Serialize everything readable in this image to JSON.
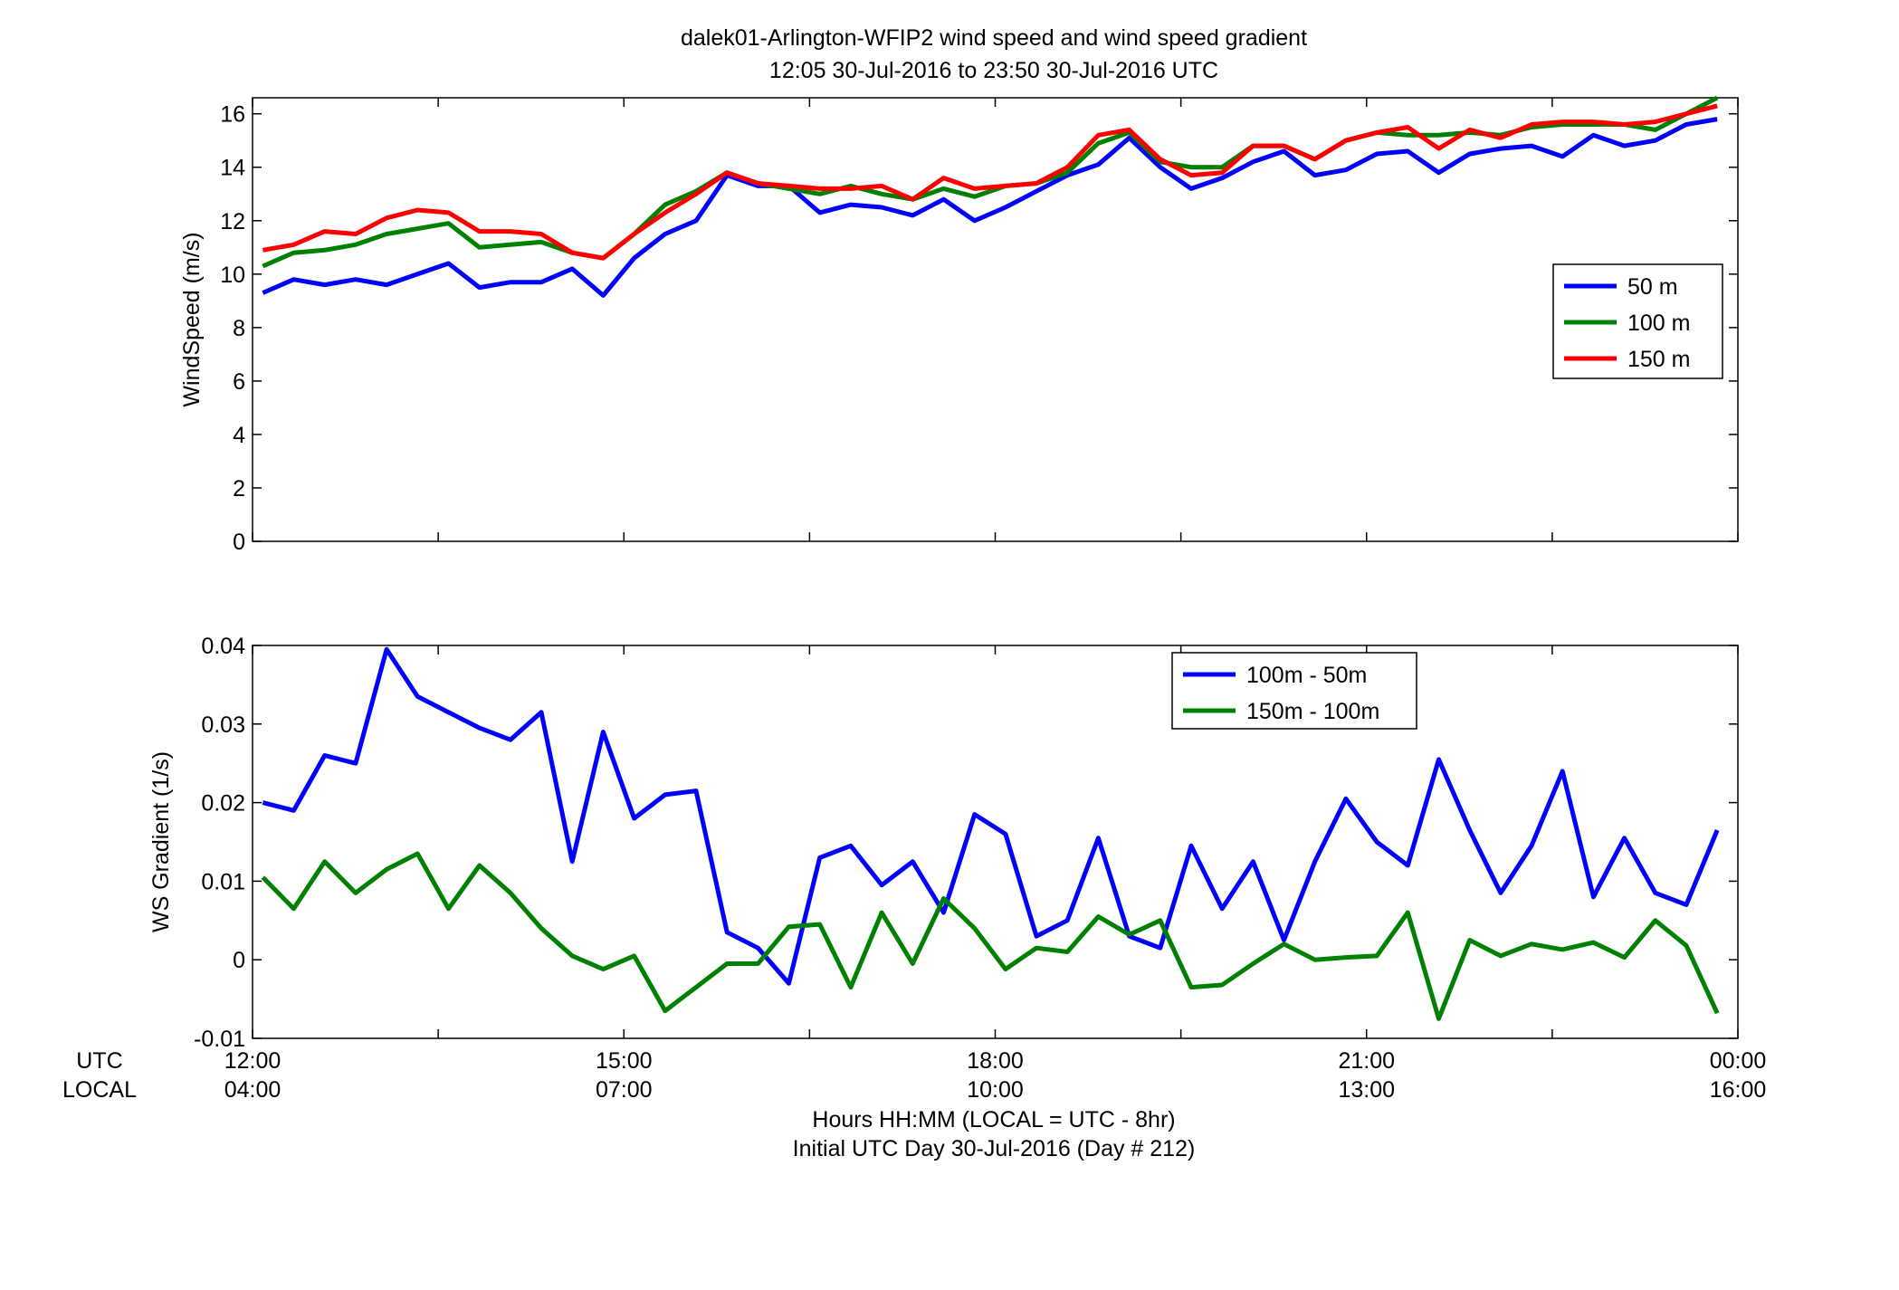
{
  "title_line1": "dalek01-Arlington-WFIP2  wind speed and wind speed gradient",
  "title_line2": "12:05 30-Jul-2016 to 23:50 30-Jul-2016  UTC",
  "utc_row_label": "UTC",
  "local_row_label": "LOCAL",
  "xlabel_line1": "Hours HH:MM  (LOCAL = UTC - 8hr)",
  "xlabel_line2": "Initial UTC Day 30-Jul-2016 (Day # 212)",
  "x_ticks_utc": [
    "12:00",
    "15:00",
    "18:00",
    "21:00",
    "00:00"
  ],
  "x_ticks_local": [
    "04:00",
    "07:00",
    "10:00",
    "13:00",
    "16:00"
  ],
  "chart_data": [
    {
      "type": "line",
      "ylabel": "WindSpeed (m/s)",
      "xlim": [
        12.0,
        24.0
      ],
      "ylim": [
        0,
        16.6
      ],
      "yticks": [
        0,
        2,
        4,
        6,
        8,
        10,
        12,
        14,
        16
      ],
      "legend_position": "right",
      "x_hours_utc": [
        12.083,
        12.333,
        12.583,
        12.833,
        13.083,
        13.333,
        13.583,
        13.833,
        14.083,
        14.333,
        14.583,
        14.833,
        15.083,
        15.333,
        15.583,
        15.833,
        16.083,
        16.333,
        16.583,
        16.833,
        17.083,
        17.333,
        17.583,
        17.833,
        18.083,
        18.333,
        18.583,
        18.833,
        19.083,
        19.333,
        19.583,
        19.833,
        20.083,
        20.333,
        20.583,
        20.833,
        21.083,
        21.333,
        21.583,
        21.833,
        22.083,
        22.333,
        22.583,
        22.833,
        23.083,
        23.333,
        23.583,
        23.833
      ],
      "series": [
        {
          "name": "50 m",
          "color": "#0000ff",
          "values": [
            9.3,
            9.8,
            9.6,
            9.8,
            9.6,
            10.0,
            10.4,
            9.5,
            9.7,
            9.7,
            10.2,
            9.2,
            10.6,
            11.5,
            12.0,
            13.7,
            13.3,
            13.3,
            12.3,
            12.6,
            12.5,
            12.2,
            12.8,
            12.0,
            12.5,
            13.1,
            13.7,
            14.1,
            15.1,
            14.0,
            13.2,
            13.6,
            14.2,
            14.6,
            13.7,
            13.9,
            14.5,
            14.6,
            13.8,
            14.5,
            14.7,
            14.8,
            14.4,
            15.2,
            14.8,
            15.0,
            15.6,
            15.8
          ]
        },
        {
          "name": "100 m",
          "color": "#008000",
          "values": [
            10.3,
            10.8,
            10.9,
            11.1,
            11.5,
            11.7,
            11.9,
            11.0,
            11.1,
            11.2,
            10.8,
            10.6,
            11.5,
            12.6,
            13.1,
            13.8,
            13.4,
            13.2,
            13.0,
            13.3,
            13.0,
            12.8,
            13.2,
            12.9,
            13.3,
            13.4,
            13.8,
            14.9,
            15.3,
            14.2,
            14.0,
            14.0,
            14.8,
            14.8,
            14.3,
            15.0,
            15.3,
            15.2,
            15.2,
            15.3,
            15.2,
            15.5,
            15.6,
            15.6,
            15.6,
            15.4,
            16.0,
            16.6
          ]
        },
        {
          "name": "150 m",
          "color": "#ff0000",
          "values": [
            10.9,
            11.1,
            11.6,
            11.5,
            12.1,
            12.4,
            12.3,
            11.6,
            11.6,
            11.5,
            10.8,
            10.6,
            11.5,
            12.3,
            13.0,
            13.8,
            13.4,
            13.3,
            13.2,
            13.2,
            13.3,
            12.8,
            13.6,
            13.2,
            13.3,
            13.4,
            14.0,
            15.2,
            15.4,
            14.3,
            13.7,
            13.8,
            14.8,
            14.8,
            14.3,
            15.0,
            15.3,
            15.5,
            14.7,
            15.4,
            15.1,
            15.6,
            15.7,
            15.7,
            15.6,
            15.7,
            16.0,
            16.3
          ]
        }
      ]
    },
    {
      "type": "line",
      "ylabel": "WS Gradient (1/s)",
      "xlim": [
        12.0,
        24.0
      ],
      "ylim": [
        -0.01,
        0.04
      ],
      "yticks": [
        -0.01,
        0,
        0.01,
        0.02,
        0.03,
        0.04
      ],
      "ytick_labels": [
        "-0.01",
        "0",
        "0.01",
        "0.02",
        "0.03",
        "0.04"
      ],
      "legend_position": "top-center",
      "x_hours_utc": [
        12.083,
        12.333,
        12.583,
        12.833,
        13.083,
        13.333,
        13.583,
        13.833,
        14.083,
        14.333,
        14.583,
        14.833,
        15.083,
        15.333,
        15.583,
        15.833,
        16.083,
        16.333,
        16.583,
        16.833,
        17.083,
        17.333,
        17.583,
        17.833,
        18.083,
        18.333,
        18.583,
        18.833,
        19.083,
        19.333,
        19.583,
        19.833,
        20.083,
        20.333,
        20.583,
        20.833,
        21.083,
        21.333,
        21.583,
        21.833,
        22.083,
        22.333,
        22.583,
        22.833,
        23.083,
        23.333,
        23.583,
        23.833
      ],
      "series": [
        {
          "name": "100m - 50m",
          "color": "#0000ff",
          "values": [
            0.02,
            0.019,
            0.026,
            0.025,
            0.0395,
            0.0335,
            0.0315,
            0.0295,
            0.028,
            0.0315,
            0.0125,
            0.029,
            0.018,
            0.021,
            0.0215,
            0.0035,
            0.0015,
            -0.003,
            0.013,
            0.0145,
            0.0095,
            0.0125,
            0.006,
            0.0185,
            0.016,
            0.003,
            0.005,
            0.0155,
            0.003,
            0.0015,
            0.0145,
            0.0065,
            0.0125,
            0.0025,
            0.0125,
            0.0205,
            0.015,
            0.012,
            0.0255,
            0.0165,
            0.0085,
            0.0145,
            0.024,
            0.008,
            0.0155,
            0.0085,
            0.007,
            0.0165
          ]
        },
        {
          "name": "150m - 100m",
          "color": "#008000",
          "values": [
            0.0105,
            0.0065,
            0.0125,
            0.0085,
            0.0115,
            0.0135,
            0.0065,
            0.012,
            0.0085,
            0.004,
            0.0005,
            -0.0012,
            0.0005,
            -0.0065,
            -0.0035,
            -0.0005,
            -0.0005,
            0.0042,
            0.0045,
            -0.0035,
            0.006,
            -0.0005,
            0.0078,
            0.004,
            -0.0012,
            0.0015,
            0.001,
            0.0055,
            0.0032,
            0.005,
            -0.0035,
            -0.0032,
            -0.0005,
            0.002,
            0.0,
            0.0003,
            0.0005,
            0.006,
            -0.0075,
            0.0025,
            0.0005,
            0.002,
            0.0013,
            0.0022,
            0.0003,
            0.005,
            0.0018,
            -0.0068
          ]
        }
      ]
    }
  ]
}
